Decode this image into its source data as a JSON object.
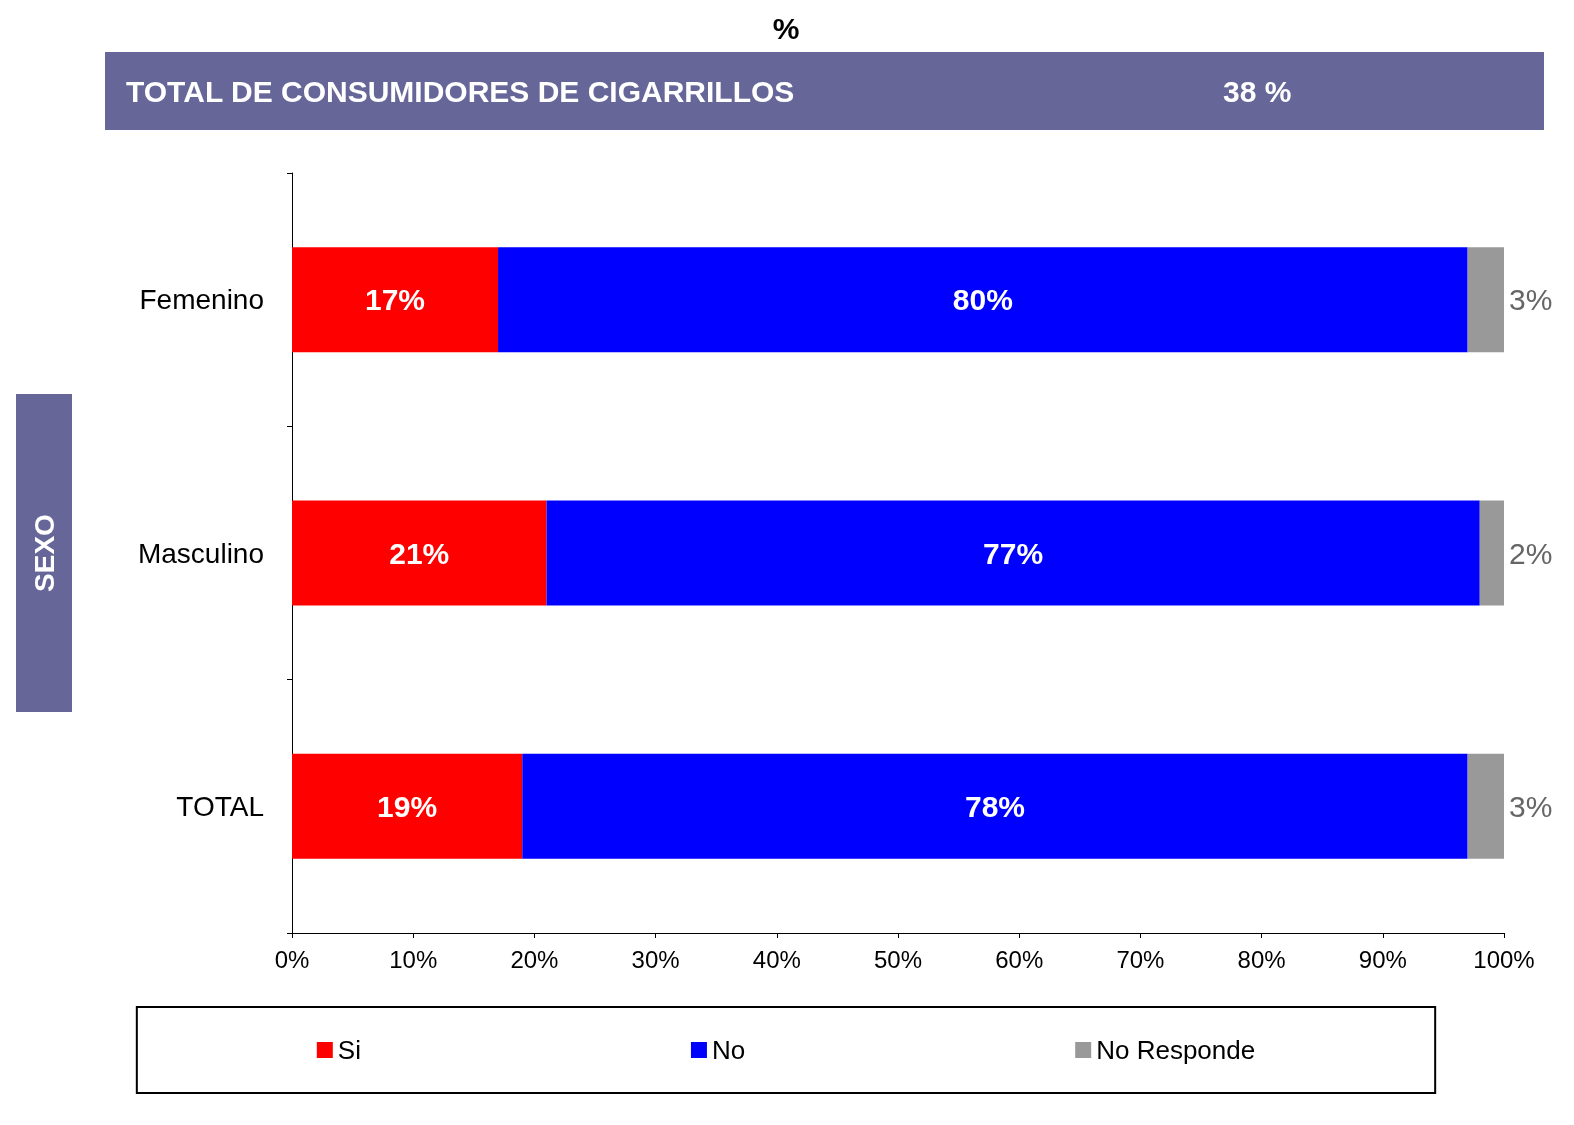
{
  "chart_data": {
    "type": "bar",
    "orientation": "horizontal",
    "stacked": true,
    "title": "%",
    "ylabel": "SEXO",
    "annotations": [
      "TOTAL DE CONSUMIDORES DE CIGARRILLOS",
      "38 %"
    ],
    "categories": [
      "Femenino",
      "Masculino",
      "TOTAL"
    ],
    "series": [
      {
        "name": "Si",
        "color": "#ff0000",
        "values": [
          17,
          21,
          19
        ],
        "value_labels": [
          "17%",
          "21%",
          "19%"
        ]
      },
      {
        "name": "No",
        "color": "#0000ff",
        "values": [
          80,
          77,
          78
        ],
        "value_labels": [
          "80%",
          "77%",
          "78%"
        ]
      },
      {
        "name": "No Responde",
        "color": "#999999",
        "values": [
          3,
          2,
          3
        ],
        "value_labels": [
          "3%",
          "2%",
          "3%"
        ]
      }
    ],
    "xlim": [
      0,
      100
    ],
    "xticks": [
      {
        "value": 0,
        "label": "0%"
      },
      {
        "value": 10,
        "label": "10%"
      },
      {
        "value": 20,
        "label": "20%"
      },
      {
        "value": 30,
        "label": "30%"
      },
      {
        "value": 40,
        "label": "40%"
      },
      {
        "value": 50,
        "label": "50%"
      },
      {
        "value": 60,
        "label": "60%"
      },
      {
        "value": 70,
        "label": "70%"
      },
      {
        "value": 80,
        "label": "80%"
      },
      {
        "value": 90,
        "label": "90%"
      },
      {
        "value": 100,
        "label": "100%"
      }
    ],
    "legend": "bottom"
  }
}
